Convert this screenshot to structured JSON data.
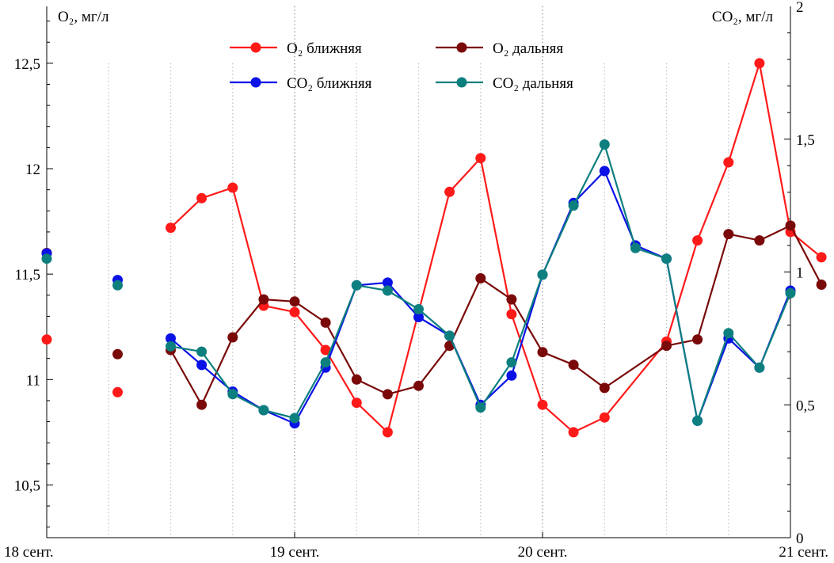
{
  "chart_data": {
    "type": "line",
    "title": "",
    "y_left_label": "O₂, мг/л",
    "y_right_label": "CO₂, мг/л",
    "x_tick_labels": [
      "18 сент.",
      "19 сент.",
      "20 сент.",
      "21 сент."
    ],
    "x_ticks": [
      0,
      1,
      2,
      3
    ],
    "x_range": [
      0,
      3
    ],
    "y_left_range": [
      10.25,
      12.77
    ],
    "y_left_ticks": [
      10.5,
      11,
      11.5,
      12,
      12.5
    ],
    "y_left_tick_labels": [
      "10,5",
      "11",
      "11,5",
      "12",
      "12,5"
    ],
    "y_right_range": [
      0,
      2
    ],
    "y_right_ticks": [
      0,
      0.5,
      1,
      1.5,
      2
    ],
    "y_right_tick_labels": [
      "0",
      "0,5",
      "1",
      "1,5",
      "2"
    ],
    "legend_position": "top-center",
    "grid": "vertical dotted",
    "series": [
      {
        "name": "O₂ ближняя",
        "axis": "left",
        "color": "#ff1a1a",
        "points": [
          [
            0,
            11.19
          ],
          [
            0.286,
            10.94
          ],
          [
            0.5,
            11.72
          ],
          [
            0.625,
            11.86
          ],
          [
            0.75,
            11.91
          ],
          [
            0.875,
            11.35
          ],
          [
            1,
            11.32
          ],
          [
            1.125,
            11.14
          ],
          [
            1.25,
            10.89
          ],
          [
            1.375,
            10.75
          ],
          [
            1.625,
            11.89
          ],
          [
            1.75,
            12.05
          ],
          [
            1.875,
            11.31
          ],
          [
            2,
            10.88
          ],
          [
            2.125,
            10.75
          ],
          [
            2.25,
            10.82
          ],
          [
            2.5,
            11.18
          ],
          [
            2.625,
            11.66
          ],
          [
            2.75,
            12.03
          ],
          [
            2.875,
            12.5
          ],
          [
            3,
            11.7
          ],
          [
            3.125,
            11.58
          ]
        ],
        "segments": [
          [
            2,
            3,
            4,
            5,
            6,
            7,
            8,
            9
          ],
          [
            9,
            10,
            11,
            12,
            13,
            14,
            15,
            16,
            17,
            18,
            19,
            20,
            21
          ]
        ]
      },
      {
        "name": "O₂ дальняя",
        "axis": "left",
        "color": "#7a0a0a",
        "points": [
          [
            0,
            11.6
          ],
          [
            0.286,
            11.12
          ],
          [
            0.5,
            11.14
          ],
          [
            0.625,
            10.88
          ],
          [
            0.75,
            11.2
          ],
          [
            0.875,
            11.38
          ],
          [
            1,
            11.37
          ],
          [
            1.125,
            11.27
          ],
          [
            1.25,
            11.0
          ],
          [
            1.375,
            10.93
          ],
          [
            1.5,
            10.97
          ],
          [
            1.625,
            11.16
          ],
          [
            1.75,
            11.48
          ],
          [
            1.875,
            11.38
          ],
          [
            2,
            11.13
          ],
          [
            2.125,
            11.07
          ],
          [
            2.25,
            10.96
          ],
          [
            2.5,
            11.16
          ],
          [
            2.625,
            11.19
          ],
          [
            2.75,
            11.69
          ],
          [
            2.875,
            11.66
          ],
          [
            3,
            11.73
          ],
          [
            3.125,
            11.45
          ]
        ],
        "segments": [
          [
            2,
            3,
            4,
            5,
            6,
            7,
            8,
            9,
            10,
            11,
            12,
            13,
            14,
            15,
            16,
            17,
            18,
            19,
            20,
            21,
            22
          ]
        ]
      },
      {
        "name": "CO₂ ближняя",
        "axis": "right",
        "color": "#0a12e6",
        "points": [
          [
            0,
            1.07
          ],
          [
            0.286,
            0.97
          ],
          [
            0.5,
            0.75
          ],
          [
            0.625,
            0.65
          ],
          [
            0.75,
            0.55
          ],
          [
            0.875,
            0.48
          ],
          [
            1,
            0.43
          ],
          [
            1.125,
            0.64
          ],
          [
            1.25,
            0.95
          ],
          [
            1.375,
            0.96
          ],
          [
            1.5,
            0.83
          ],
          [
            1.625,
            0.76
          ],
          [
            1.75,
            0.5
          ],
          [
            1.875,
            0.61
          ],
          [
            2,
            0.99
          ],
          [
            2.125,
            1.26
          ],
          [
            2.25,
            1.38
          ],
          [
            2.375,
            1.1
          ],
          [
            2.5,
            1.05
          ],
          [
            2.625,
            0.44
          ],
          [
            2.75,
            0.75
          ],
          [
            2.875,
            0.64
          ],
          [
            3,
            0.93
          ]
        ],
        "segments": [
          [
            2,
            3,
            4,
            5,
            6,
            7,
            8,
            9,
            10,
            11,
            12,
            13,
            14,
            15,
            16,
            17,
            18,
            19,
            20,
            21,
            22
          ]
        ]
      },
      {
        "name": "CO₂ дальняя",
        "axis": "right",
        "color": "#0e7f7f",
        "points": [
          [
            0,
            1.05
          ],
          [
            0.286,
            0.95
          ],
          [
            0.5,
            0.72
          ],
          [
            0.625,
            0.7
          ],
          [
            0.75,
            0.54
          ],
          [
            0.875,
            0.48
          ],
          [
            1,
            0.45
          ],
          [
            1.125,
            0.66
          ],
          [
            1.25,
            0.95
          ],
          [
            1.375,
            0.93
          ],
          [
            1.5,
            0.86
          ],
          [
            1.625,
            0.76
          ],
          [
            1.75,
            0.49
          ],
          [
            1.875,
            0.66
          ],
          [
            2,
            0.99
          ],
          [
            2.125,
            1.25
          ],
          [
            2.25,
            1.48
          ],
          [
            2.375,
            1.09
          ],
          [
            2.5,
            1.05
          ],
          [
            2.625,
            0.44
          ],
          [
            2.75,
            0.77
          ],
          [
            2.875,
            0.64
          ],
          [
            3,
            0.92
          ]
        ],
        "segments": [
          [
            2,
            3,
            4,
            5,
            6,
            7,
            8,
            9,
            10,
            11,
            12,
            13,
            14,
            15,
            16,
            17,
            18,
            19,
            20,
            21,
            22
          ]
        ]
      }
    ]
  }
}
